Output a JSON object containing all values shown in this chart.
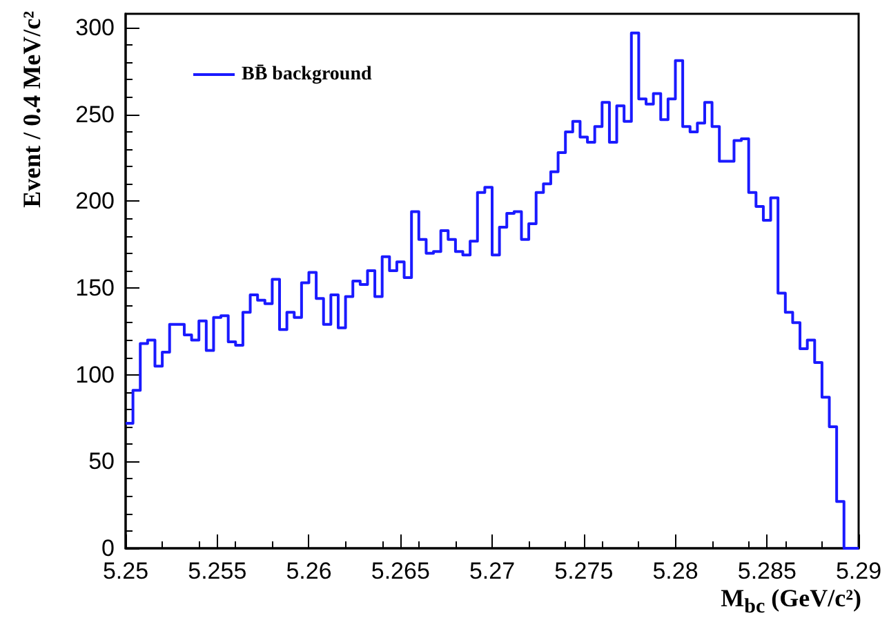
{
  "chart_data": {
    "type": "histogram",
    "xlabel": "M$_{bc}$ (GeV/c²)",
    "ylabel": "Event / 0.4 MeV/c²",
    "bins": [
      5.25,
      5.2504,
      5.2508,
      5.2512,
      5.2516,
      5.252,
      5.2524,
      5.2528,
      5.2532,
      5.2536,
      5.254,
      5.2544,
      5.2548,
      5.2552,
      5.2556,
      5.256,
      5.2564,
      5.2568,
      5.2572,
      5.2576,
      5.258,
      5.2584,
      5.2588,
      5.2592,
      5.2596,
      5.26,
      5.2604,
      5.2608,
      5.2612,
      5.2616,
      5.262,
      5.2624,
      5.2628,
      5.2632,
      5.2636,
      5.264,
      5.2644,
      5.2648,
      5.2652,
      5.2656,
      5.266,
      5.2664,
      5.2668,
      5.2672,
      5.2676,
      5.268,
      5.2684,
      5.2688,
      5.2692,
      5.2696,
      5.27,
      5.2704,
      5.2708,
      5.2712,
      5.2716,
      5.272,
      5.2724,
      5.2728,
      5.2732,
      5.2736,
      5.274,
      5.2744,
      5.2748,
      5.2752,
      5.2756,
      5.276,
      5.2764,
      5.2768,
      5.2772,
      5.2776,
      5.278,
      5.2784,
      5.2788,
      5.2792,
      5.2796,
      5.28,
      5.2804,
      5.2808,
      5.2812,
      5.2816,
      5.282,
      5.2824,
      5.2828,
      5.2832,
      5.2836,
      5.284,
      5.2844,
      5.2848,
      5.2852,
      5.2856,
      5.286,
      5.2864,
      5.2868,
      5.2872,
      5.2876,
      5.288,
      5.2884,
      5.2888,
      5.2892,
      5.2896,
      5.29
    ],
    "series": [
      {
        "name": "BB̄ background",
        "color": "#1a1aff",
        "values": [
          72,
          91,
          118,
          120,
          105,
          113,
          129,
          129,
          123,
          120,
          131,
          114,
          133,
          134,
          119,
          117,
          136,
          146,
          143,
          141,
          155,
          126,
          136,
          133,
          153,
          159,
          144,
          129,
          146,
          127,
          145,
          154,
          152,
          160,
          145,
          168,
          160,
          165,
          156,
          194,
          178,
          170,
          171,
          183,
          178,
          171,
          169,
          177,
          205,
          208,
          169,
          185,
          193,
          194,
          178,
          187,
          205,
          210,
          217,
          228,
          240,
          246,
          237,
          234,
          243,
          257,
          234,
          255,
          246,
          297,
          259,
          256,
          262,
          247,
          259,
          281,
          243,
          240,
          245,
          257,
          243,
          223,
          223,
          235,
          236,
          205,
          197,
          189,
          202,
          147,
          136,
          130,
          115,
          120,
          107,
          87,
          70,
          27,
          0,
          0
        ]
      }
    ],
    "xlim": [
      5.25,
      5.29
    ],
    "xticks": [
      5.25,
      5.255,
      5.26,
      5.265,
      5.27,
      5.275,
      5.28,
      5.285,
      5.29
    ],
    "ylim": [
      0,
      308
    ],
    "yticks": [
      0,
      50,
      100,
      150,
      200,
      250,
      300
    ],
    "legend": "top left",
    "grid": false
  }
}
